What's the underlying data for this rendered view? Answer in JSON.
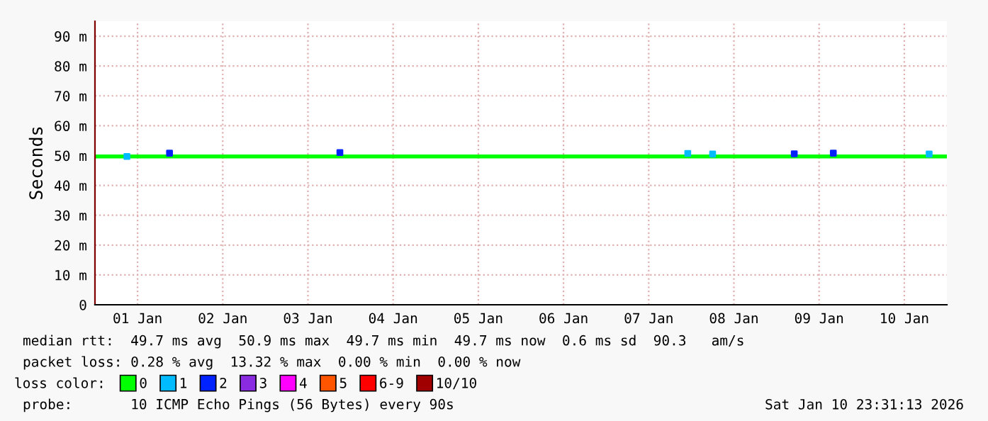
{
  "chart_data": {
    "type": "line",
    "ylabel": "Seconds",
    "legend_title": "loss color:",
    "legend": "bottom",
    "grid": true,
    "xlim": [
      "2026-01-01",
      "2026-01-11"
    ],
    "xticks": [
      {
        "value": "2026-01-01T12:00",
        "label": "01 Jan"
      },
      {
        "value": "2026-01-02T12:00",
        "label": "02 Jan"
      },
      {
        "value": "2026-01-03T12:00",
        "label": "03 Jan"
      },
      {
        "value": "2026-01-04T12:00",
        "label": "04 Jan"
      },
      {
        "value": "2026-01-05T12:00",
        "label": "05 Jan"
      },
      {
        "value": "2026-01-06T12:00",
        "label": "06 Jan"
      },
      {
        "value": "2026-01-07T12:00",
        "label": "07 Jan"
      },
      {
        "value": "2026-01-08T12:00",
        "label": "08 Jan"
      },
      {
        "value": "2026-01-09T12:00",
        "label": "09 Jan"
      },
      {
        "value": "2026-01-10T12:00",
        "label": "10 Jan"
      }
    ],
    "ylim": [
      0,
      95
    ],
    "yticks": [
      0,
      {
        "value": 10,
        "label": "10 m"
      },
      {
        "value": 20,
        "label": "20 m"
      },
      {
        "value": 30,
        "label": "30 m"
      },
      {
        "value": 40,
        "label": "40 m"
      },
      {
        "value": 50,
        "label": "50 m"
      },
      {
        "value": 60,
        "label": "60 m"
      },
      {
        "value": 70,
        "label": "70 m"
      },
      {
        "value": 80,
        "label": "80 m"
      },
      {
        "value": 90,
        "label": "90 m"
      }
    ],
    "series": [
      {
        "name": "0",
        "color": "#00ff00",
        "x": [
          "2026-01-01",
          "2026-01-02",
          "2026-01-03",
          "2026-01-04",
          "2026-01-05",
          "2026-01-06",
          "2026-01-07",
          "2026-01-08",
          "2026-01-09",
          "2026-01-10",
          "2026-01-10T23:30"
        ],
        "values": [
          49.7,
          49.7,
          49.7,
          49.7,
          49.7,
          49.7,
          49.7,
          49.7,
          49.7,
          49.7,
          49.7
        ]
      },
      {
        "name": "1",
        "color": "#00bbff",
        "type": "scatter",
        "x": [
          "2026-01-01T09:00",
          "2026-01-07T23:00",
          "2026-01-08T06:00",
          "2026-01-10T19:00"
        ],
        "values": [
          49.7,
          50.7,
          50.5,
          50.5
        ]
      },
      {
        "name": "2",
        "color": "#0022ff",
        "type": "scatter",
        "x": [
          "2026-01-01T21:00",
          "2026-01-03T21:00",
          "2026-01-09T05:00",
          "2026-01-09T16:00"
        ],
        "values": [
          50.8,
          51,
          50.6,
          50.8
        ]
      },
      {
        "name": "3",
        "color": "#8a2be2",
        "type": "scatter"
      },
      {
        "name": "4",
        "color": "#ff00ff",
        "type": "scatter"
      },
      {
        "name": "5",
        "color": "#ff5500",
        "type": "scatter"
      },
      {
        "name": "6-9",
        "color": "#ff0000",
        "type": "scatter"
      },
      {
        "name": "10/10",
        "color": "#a10000",
        "type": "scatter"
      }
    ],
    "annotations": [
      "median rtt:  49.7 ms avg  50.9 ms max  49.7 ms min  49.7 ms now  0.6 ms sd  90.3   am/s",
      "packet loss: 0.28 % avg  13.32 % max  0.00 % min  0.00 % now",
      "probe:       10 ICMP Echo Pings (56 Bytes) every 90s",
      "Sat Jan 10 23:31:13 2026"
    ]
  }
}
